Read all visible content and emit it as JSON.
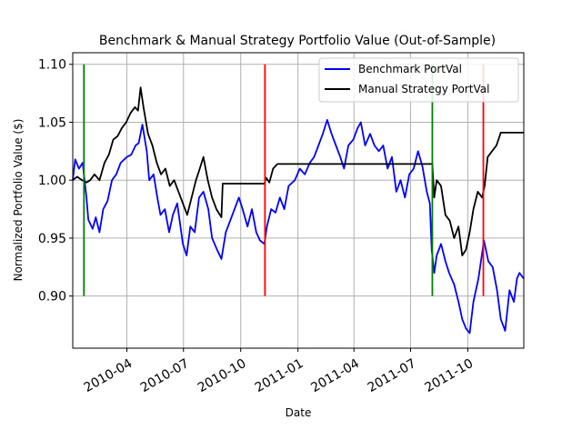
{
  "chart_data": {
    "type": "line",
    "title": "Benchmark & Manual Strategy Portfolio Value (Out-of-Sample)",
    "xlabel": "Date",
    "ylabel": "Normalized Portfolio Value ($)",
    "xlim": [
      "2010-01-04",
      "2011-12-30"
    ],
    "ylim": [
      0.855,
      1.11
    ],
    "x_ticks": [
      "2010-04-01",
      "2010-07-01",
      "2010-10-01",
      "2011-01-01",
      "2011-04-01",
      "2011-07-01",
      "2011-10-01"
    ],
    "x_tick_labels": [
      "2010-04",
      "2010-07",
      "2010-10",
      "2011-01",
      "2011-04",
      "2011-07",
      "2011-10"
    ],
    "y_ticks": [
      0.9,
      0.95,
      1.0,
      1.05,
      1.1
    ],
    "y_tick_labels": [
      "0.90",
      "0.95",
      "1.00",
      "1.05",
      "1.10"
    ],
    "grid": true,
    "legend_position": "top-right",
    "series": [
      {
        "name": "Benchmark PortVal",
        "color": "#0000ff",
        "points": [
          [
            "2010-01-04",
            1.0
          ],
          [
            "2010-01-08",
            1.018
          ],
          [
            "2010-01-14",
            1.01
          ],
          [
            "2010-01-20",
            1.015
          ],
          [
            "2010-01-26",
            0.985
          ],
          [
            "2010-01-29",
            0.966
          ],
          [
            "2010-02-05",
            0.958
          ],
          [
            "2010-02-10",
            0.968
          ],
          [
            "2010-02-16",
            0.955
          ],
          [
            "2010-02-22",
            0.975
          ],
          [
            "2010-03-01",
            0.982
          ],
          [
            "2010-03-08",
            1.0
          ],
          [
            "2010-03-15",
            1.005
          ],
          [
            "2010-03-22",
            1.015
          ],
          [
            "2010-04-01",
            1.02
          ],
          [
            "2010-04-08",
            1.022
          ],
          [
            "2010-04-15",
            1.03
          ],
          [
            "2010-04-20",
            1.032
          ],
          [
            "2010-04-26",
            1.048
          ],
          [
            "2010-05-03",
            1.025
          ],
          [
            "2010-05-07",
            1.0
          ],
          [
            "2010-05-14",
            1.005
          ],
          [
            "2010-05-20",
            0.985
          ],
          [
            "2010-05-25",
            0.97
          ],
          [
            "2010-06-01",
            0.975
          ],
          [
            "2010-06-08",
            0.955
          ],
          [
            "2010-06-14",
            0.97
          ],
          [
            "2010-06-21",
            0.98
          ],
          [
            "2010-06-30",
            0.945
          ],
          [
            "2010-07-06",
            0.935
          ],
          [
            "2010-07-12",
            0.96
          ],
          [
            "2010-07-19",
            0.955
          ],
          [
            "2010-07-26",
            0.985
          ],
          [
            "2010-08-02",
            0.99
          ],
          [
            "2010-08-10",
            0.975
          ],
          [
            "2010-08-16",
            0.95
          ],
          [
            "2010-08-24",
            0.94
          ],
          [
            "2010-08-31",
            0.932
          ],
          [
            "2010-09-07",
            0.955
          ],
          [
            "2010-09-14",
            0.965
          ],
          [
            "2010-09-21",
            0.975
          ],
          [
            "2010-09-28",
            0.985
          ],
          [
            "2010-10-04",
            0.975
          ],
          [
            "2010-10-12",
            0.96
          ],
          [
            "2010-10-19",
            0.975
          ],
          [
            "2010-10-26",
            0.955
          ],
          [
            "2010-11-01",
            0.948
          ],
          [
            "2010-11-08",
            0.945
          ],
          [
            "2010-11-12",
            0.96
          ],
          [
            "2010-11-19",
            0.975
          ],
          [
            "2010-11-26",
            0.972
          ],
          [
            "2010-12-03",
            0.985
          ],
          [
            "2010-12-10",
            0.975
          ],
          [
            "2010-12-17",
            0.995
          ],
          [
            "2010-12-27",
            1.0
          ],
          [
            "2011-01-04",
            1.01
          ],
          [
            "2011-01-12",
            1.005
          ],
          [
            "2011-01-20",
            1.015
          ],
          [
            "2011-01-27",
            1.02
          ],
          [
            "2011-02-03",
            1.03
          ],
          [
            "2011-02-10",
            1.04
          ],
          [
            "2011-02-17",
            1.052
          ],
          [
            "2011-02-24",
            1.04
          ],
          [
            "2011-03-03",
            1.03
          ],
          [
            "2011-03-10",
            1.02
          ],
          [
            "2011-03-16",
            1.01
          ],
          [
            "2011-03-23",
            1.03
          ],
          [
            "2011-03-31",
            1.035
          ],
          [
            "2011-04-07",
            1.045
          ],
          [
            "2011-04-12",
            1.05
          ],
          [
            "2011-04-19",
            1.03
          ],
          [
            "2011-04-27",
            1.04
          ],
          [
            "2011-05-04",
            1.03
          ],
          [
            "2011-05-11",
            1.025
          ],
          [
            "2011-05-18",
            1.03
          ],
          [
            "2011-05-25",
            1.01
          ],
          [
            "2011-06-01",
            1.02
          ],
          [
            "2011-06-08",
            0.99
          ],
          [
            "2011-06-15",
            1.0
          ],
          [
            "2011-06-22",
            0.985
          ],
          [
            "2011-06-29",
            1.005
          ],
          [
            "2011-07-06",
            1.01
          ],
          [
            "2011-07-13",
            1.025
          ],
          [
            "2011-07-20",
            1.012
          ],
          [
            "2011-07-27",
            0.99
          ],
          [
            "2011-08-01",
            0.98
          ],
          [
            "2011-08-04",
            0.94
          ],
          [
            "2011-08-08",
            0.92
          ],
          [
            "2011-08-12",
            0.935
          ],
          [
            "2011-08-19",
            0.945
          ],
          [
            "2011-08-26",
            0.93
          ],
          [
            "2011-09-01",
            0.92
          ],
          [
            "2011-09-09",
            0.91
          ],
          [
            "2011-09-16",
            0.895
          ],
          [
            "2011-09-22",
            0.88
          ],
          [
            "2011-09-28",
            0.872
          ],
          [
            "2011-10-04",
            0.868
          ],
          [
            "2011-10-10",
            0.895
          ],
          [
            "2011-10-18",
            0.915
          ],
          [
            "2011-10-27",
            0.948
          ],
          [
            "2011-11-03",
            0.93
          ],
          [
            "2011-11-10",
            0.925
          ],
          [
            "2011-11-17",
            0.905
          ],
          [
            "2011-11-23",
            0.88
          ],
          [
            "2011-11-30",
            0.87
          ],
          [
            "2011-12-07",
            0.905
          ],
          [
            "2011-12-14",
            0.895
          ],
          [
            "2011-12-19",
            0.915
          ],
          [
            "2011-12-23",
            0.92
          ],
          [
            "2011-12-30",
            0.915
          ]
        ]
      },
      {
        "name": "Manual Strategy PortVal",
        "color": "#000000",
        "points": [
          [
            "2010-01-04",
            1.0
          ],
          [
            "2010-01-11",
            1.003
          ],
          [
            "2010-01-19",
            1.0
          ],
          [
            "2010-01-26",
            0.998
          ],
          [
            "2010-02-01",
            1.0
          ],
          [
            "2010-02-08",
            1.005
          ],
          [
            "2010-02-16",
            1.0
          ],
          [
            "2010-02-24",
            1.015
          ],
          [
            "2010-03-03",
            1.022
          ],
          [
            "2010-03-10",
            1.035
          ],
          [
            "2010-03-17",
            1.038
          ],
          [
            "2010-03-24",
            1.045
          ],
          [
            "2010-03-31",
            1.05
          ],
          [
            "2010-04-07",
            1.058
          ],
          [
            "2010-04-14",
            1.063
          ],
          [
            "2010-04-19",
            1.06
          ],
          [
            "2010-04-23",
            1.08
          ],
          [
            "2010-04-28",
            1.062
          ],
          [
            "2010-05-05",
            1.04
          ],
          [
            "2010-05-12",
            1.03
          ],
          [
            "2010-05-19",
            1.015
          ],
          [
            "2010-05-26",
            1.005
          ],
          [
            "2010-06-02",
            1.01
          ],
          [
            "2010-06-09",
            0.995
          ],
          [
            "2010-06-16",
            1.0
          ],
          [
            "2010-06-23",
            0.99
          ],
          [
            "2010-06-30",
            0.98
          ],
          [
            "2010-07-07",
            0.97
          ],
          [
            "2010-07-14",
            0.985
          ],
          [
            "2010-07-21",
            1.0
          ],
          [
            "2010-07-26",
            1.008
          ],
          [
            "2010-08-02",
            1.02
          ],
          [
            "2010-08-09",
            1.0
          ],
          [
            "2010-08-16",
            0.985
          ],
          [
            "2010-08-23",
            0.975
          ],
          [
            "2010-08-31",
            0.968
          ],
          [
            "2010-09-02",
            0.997
          ],
          [
            "2010-11-08",
            0.997
          ],
          [
            "2010-11-11",
            1.002
          ],
          [
            "2010-11-16",
            0.998
          ],
          [
            "2010-11-22",
            1.01
          ],
          [
            "2010-11-29",
            1.014
          ],
          [
            "2011-08-05",
            1.014
          ],
          [
            "2011-08-08",
            0.985
          ],
          [
            "2011-08-12",
            1.0
          ],
          [
            "2011-08-19",
            0.995
          ],
          [
            "2011-08-26",
            0.97
          ],
          [
            "2011-09-02",
            0.965
          ],
          [
            "2011-09-09",
            0.95
          ],
          [
            "2011-09-16",
            0.96
          ],
          [
            "2011-09-22",
            0.935
          ],
          [
            "2011-09-28",
            0.94
          ],
          [
            "2011-10-04",
            0.955
          ],
          [
            "2011-10-10",
            0.975
          ],
          [
            "2011-10-17",
            0.99
          ],
          [
            "2011-10-24",
            0.985
          ],
          [
            "2011-10-28",
            0.995
          ],
          [
            "2011-11-02",
            1.02
          ],
          [
            "2011-11-09",
            1.025
          ],
          [
            "2011-11-16",
            1.03
          ],
          [
            "2011-11-23",
            1.041
          ],
          [
            "2011-12-30",
            1.041
          ]
        ]
      }
    ],
    "vertical_lines": [
      {
        "date": "2010-01-22",
        "color": "#008000",
        "y_range": [
          0.9,
          1.1
        ]
      },
      {
        "date": "2010-11-09",
        "color": "#ff0000",
        "y_range": [
          0.9,
          1.1
        ]
      },
      {
        "date": "2011-08-05",
        "color": "#008000",
        "y_range": [
          0.9,
          1.1
        ]
      },
      {
        "date": "2011-10-26",
        "color": "#ff0000",
        "y_range": [
          0.9,
          1.1
        ]
      }
    ]
  }
}
